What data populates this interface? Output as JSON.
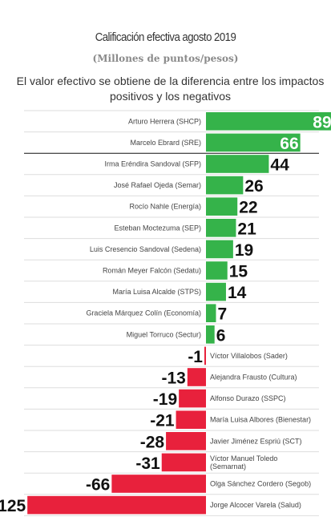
{
  "chart_title": "Calificación efectiva agosto 2019",
  "subtitle": "(Millones de puntos/pesos)",
  "description": "El valor efectivo se obtiene de la diferencia entre los impactos positivos y los negativos",
  "chart_data": {
    "type": "bar",
    "orientation": "horizontal",
    "title": "Calificación efectiva agosto 2019",
    "subtitle": "(Millones de puntos/pesos)",
    "colors": {
      "positive": "#35b34a",
      "negative": "#e8213c",
      "separator": "#dddddd",
      "divider": "#111111"
    },
    "categories": [
      [
        "Arturo Herrera (SHCP)"
      ],
      [
        "Marcelo Ebrard (SRE)"
      ],
      [
        "Irma Eréndira Sandoval (SFP)"
      ],
      [
        "José Rafael Ojeda (Semar)"
      ],
      [
        "Rocío Nahle (Energía)"
      ],
      [
        "Esteban Moctezuma (SEP)"
      ],
      [
        "Luis Cresencio Sandoval (Sedena)"
      ],
      [
        "Román Meyer Falcón (Sedatu)"
      ],
      [
        "María Luisa Alcalde (STPS)"
      ],
      [
        "Graciela Márquez Colín (Economía)"
      ],
      [
        "Miguel Torruco (Sectur)"
      ],
      [
        "Víctor Villalobos (Sader)"
      ],
      [
        "Alejandra Frausto (Cultura)"
      ],
      [
        "Alfonso Durazo (SSPC)"
      ],
      [
        "María Luisa Albores (Bienestar)"
      ],
      [
        "Javier Jiménez Espriú (SCT)"
      ],
      [
        "Víctor Manuel Toledo",
        "(Semarnat)"
      ],
      [
        "Olga Sánchez Cordero (Segob)"
      ],
      [
        "Jorge Alcocer Varela (Salud)"
      ]
    ],
    "values": [
      89,
      66,
      44,
      26,
      22,
      21,
      19,
      15,
      14,
      7,
      6,
      -1,
      -13,
      -19,
      -21,
      -28,
      -31,
      -66,
      -125
    ]
  }
}
